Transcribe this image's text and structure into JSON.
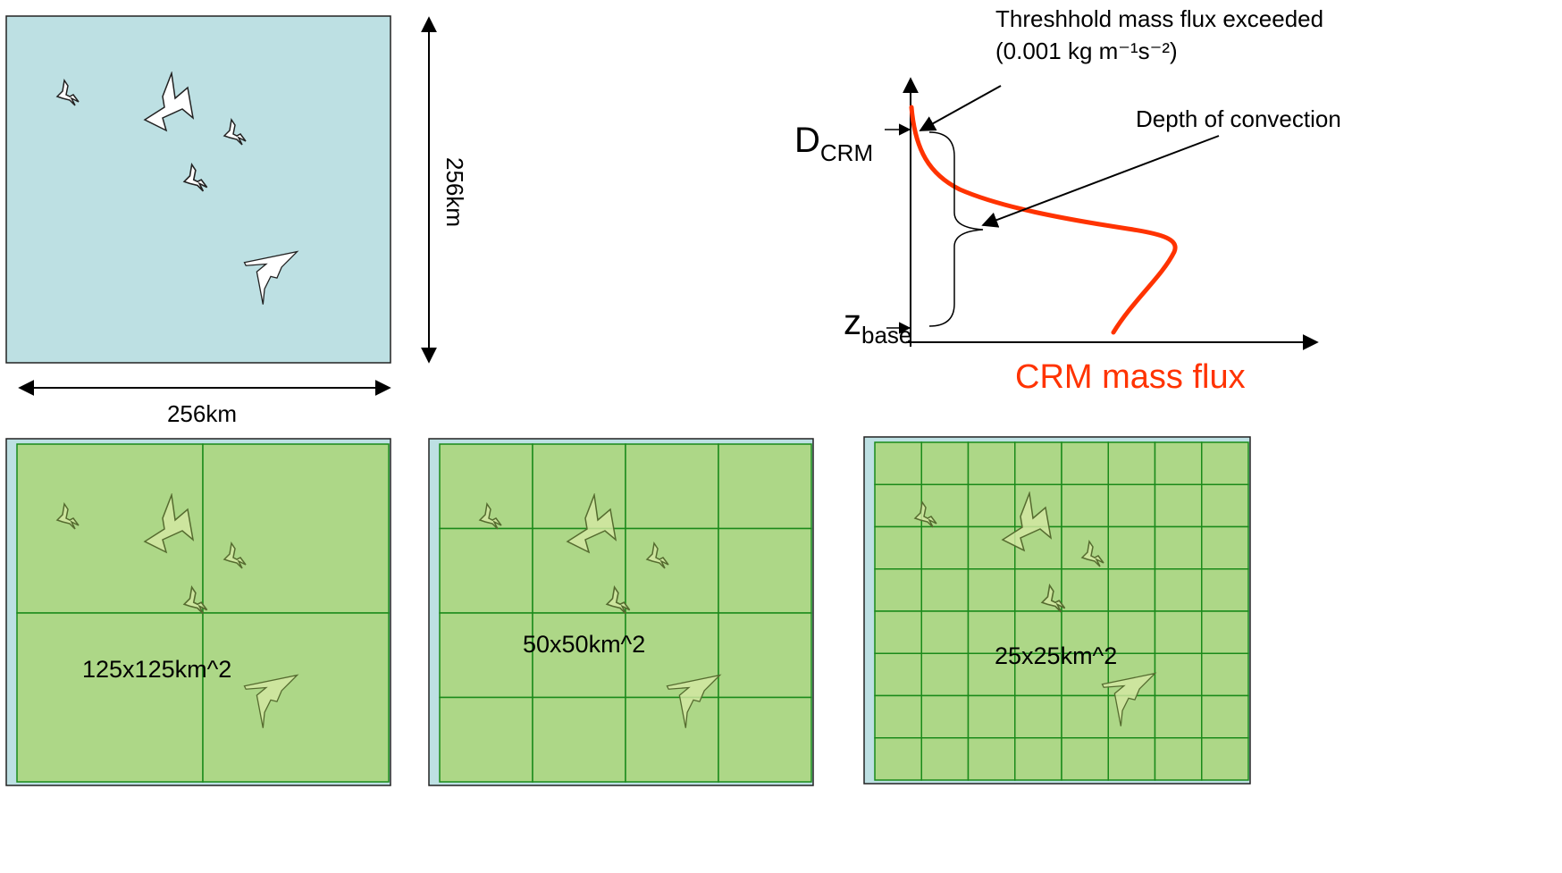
{
  "top_domain": {
    "width_label": "256km",
    "height_label": "256km",
    "fill": "#bde0e3",
    "cloud_fill": "#ffffff"
  },
  "profile": {
    "threshold_label": "Threshhold mass flux exceeded",
    "threshold_value_label": "(0.001 kg m⁻¹s⁻²)",
    "depth_label": "Depth of convection",
    "d_main": "D",
    "d_sub": "CRM",
    "z_main": "z",
    "z_sub": "base",
    "xlabel": "CRM mass flux",
    "curve_color": "#ff3300"
  },
  "panels": [
    {
      "label": "125x125km^2",
      "grid": 2
    },
    {
      "label": "50x50km^2",
      "grid": 4
    },
    {
      "label": "25x25km^2",
      "grid": 8
    }
  ],
  "colors": {
    "box_fill": "#add787",
    "box_stroke": "#339933",
    "grid_stroke": "#1a8a1a",
    "cloud_overlay_fill": "#d4e8a4"
  }
}
